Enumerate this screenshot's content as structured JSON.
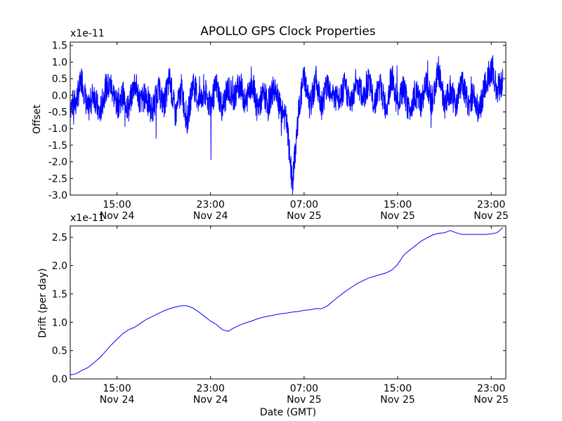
{
  "chart_data": [
    {
      "type": "line",
      "title": "APOLLO GPS Clock Properties",
      "ylabel": "Offset",
      "xlabel": "",
      "y_multiplier": "x1e-11",
      "ylim": [
        -3.0,
        1.6
      ],
      "yticks": [
        -3.0,
        -2.5,
        -2.0,
        -1.5,
        -1.0,
        -0.5,
        0.0,
        0.5,
        1.0,
        1.5
      ],
      "ytick_labels": [
        "-3.0",
        "-2.5",
        "-2.0",
        "-1.5",
        "-1.0",
        "-0.5",
        "0.0",
        "0.5",
        "1.0",
        "1.5"
      ],
      "xlim": [
        "2008-11-24 11:00",
        "2008-11-26 00:15"
      ],
      "xticks": [
        {
          "time": "15:00",
          "date": "Nov 24"
        },
        {
          "time": "23:00",
          "date": "Nov 24"
        },
        {
          "time": "07:00",
          "date": "Nov 25"
        },
        {
          "time": "15:00",
          "date": "Nov 25"
        },
        {
          "time": "23:00",
          "date": "Nov 25"
        }
      ],
      "color": "#0000ff",
      "series": [
        {
          "x_hours_ticks_relative": [],
          "x": [
            11.0,
            11.5,
            12.0,
            12.5,
            13.0,
            13.5,
            14.0,
            14.5,
            15.0,
            15.5,
            16.0,
            16.5,
            17.0,
            17.5,
            18.0,
            18.5,
            19.0,
            19.5,
            20.0,
            20.5,
            21.0,
            21.5,
            22.0,
            22.5,
            23.0,
            23.5,
            24.0,
            24.5,
            25.0,
            25.5,
            26.0,
            26.5,
            27.0,
            27.5,
            28.0,
            28.5,
            29.0,
            29.5,
            30.0,
            30.5,
            31.0,
            31.5,
            32.0,
            32.5,
            33.0,
            33.5,
            34.0,
            34.5,
            35.0,
            35.5,
            36.0,
            36.5,
            37.0,
            37.5,
            38.0,
            38.5,
            39.0,
            39.5,
            40.0,
            40.5,
            41.0,
            41.5,
            42.0,
            42.5,
            43.0,
            43.5,
            44.0,
            44.5,
            45.0,
            45.5,
            46.0,
            46.5,
            47.0,
            47.5,
            48.0
          ],
          "values": [
            -0.3,
            -0.2,
            0.5,
            -0.5,
            0.1,
            -0.6,
            0.2,
            0.3,
            -0.3,
            0.0,
            -0.4,
            0.4,
            -0.2,
            0.0,
            -0.5,
            0.2,
            -0.3,
            0.5,
            -0.6,
            0.2,
            -0.8,
            0.4,
            -0.2,
            0.1,
            -0.3,
            0.3,
            -0.4,
            0.2,
            -0.1,
            0.4,
            -0.3,
            0.5,
            -0.4,
            0.0,
            -0.2,
            0.3,
            -0.3,
            -0.8,
            -2.7,
            -0.6,
            0.6,
            -0.4,
            0.5,
            -0.3,
            0.4,
            0.0,
            -0.2,
            0.3,
            -0.3,
            0.5,
            -0.1,
            0.4,
            -0.2,
            0.3,
            -0.4,
            0.6,
            -0.3,
            0.2,
            -0.5,
            0.1,
            -0.3,
            0.4,
            -0.2,
            0.8,
            -0.3,
            0.2,
            -0.4,
            0.5,
            -0.3,
            0.0,
            -0.5,
            0.3,
            0.8,
            0.2,
            0.4
          ]
        }
      ]
    },
    {
      "type": "line",
      "title": "",
      "ylabel": "Drift (per day)",
      "xlabel": "Date (GMT)",
      "y_multiplier": "x1e-11",
      "ylim": [
        0.0,
        2.7
      ],
      "yticks": [
        0.0,
        0.5,
        1.0,
        1.5,
        2.0,
        2.5
      ],
      "ytick_labels": [
        "0.0",
        "0.5",
        "1.0",
        "1.5",
        "2.0",
        "2.5"
      ],
      "xlim": [
        "2008-11-24 11:00",
        "2008-11-26 00:15"
      ],
      "xticks": [
        {
          "time": "15:00",
          "date": "Nov 24"
        },
        {
          "time": "23:00",
          "date": "Nov 24"
        },
        {
          "time": "07:00",
          "date": "Nov 25"
        },
        {
          "time": "15:00",
          "date": "Nov 25"
        },
        {
          "time": "23:00",
          "date": "Nov 25"
        }
      ],
      "color": "#0000ff",
      "series": [
        {
          "x": [
            11.0,
            11.5,
            12.0,
            12.5,
            13.0,
            13.5,
            14.0,
            14.5,
            15.0,
            15.5,
            16.0,
            16.5,
            17.0,
            17.5,
            18.0,
            18.5,
            19.0,
            19.5,
            20.0,
            20.5,
            21.0,
            21.5,
            22.0,
            22.5,
            23.0,
            23.5,
            24.0,
            24.5,
            25.0,
            25.5,
            26.0,
            26.5,
            27.0,
            27.5,
            28.0,
            28.5,
            29.0,
            29.5,
            30.0,
            30.5,
            31.0,
            31.5,
            32.0,
            32.5,
            33.0,
            33.5,
            34.0,
            34.5,
            35.0,
            35.5,
            36.0,
            36.5,
            37.0,
            37.5,
            38.0,
            38.5,
            39.0,
            39.5,
            40.0,
            40.5,
            41.0,
            41.5,
            42.0,
            42.5,
            43.0,
            43.5,
            44.0,
            44.5,
            45.0,
            45.5,
            46.0,
            46.5,
            47.0,
            47.5,
            48.0
          ],
          "values": [
            0.07,
            0.09,
            0.15,
            0.2,
            0.28,
            0.37,
            0.48,
            0.6,
            0.7,
            0.8,
            0.87,
            0.91,
            0.98,
            1.05,
            1.1,
            1.15,
            1.2,
            1.24,
            1.27,
            1.29,
            1.29,
            1.25,
            1.18,
            1.1,
            1.02,
            0.96,
            0.87,
            0.84,
            0.9,
            0.95,
            0.99,
            1.02,
            1.06,
            1.09,
            1.11,
            1.13,
            1.15,
            1.16,
            1.18,
            1.19,
            1.21,
            1.22,
            1.24,
            1.24,
            1.29,
            1.38,
            1.46,
            1.54,
            1.61,
            1.68,
            1.73,
            1.78,
            1.81,
            1.84,
            1.87,
            1.92,
            2.02,
            2.18,
            2.27,
            2.35,
            2.43,
            2.49,
            2.54,
            2.57,
            2.58,
            2.62,
            2.58,
            2.55,
            2.55,
            2.55,
            2.55,
            2.55,
            2.56,
            2.58,
            2.67
          ]
        }
      ]
    }
  ]
}
